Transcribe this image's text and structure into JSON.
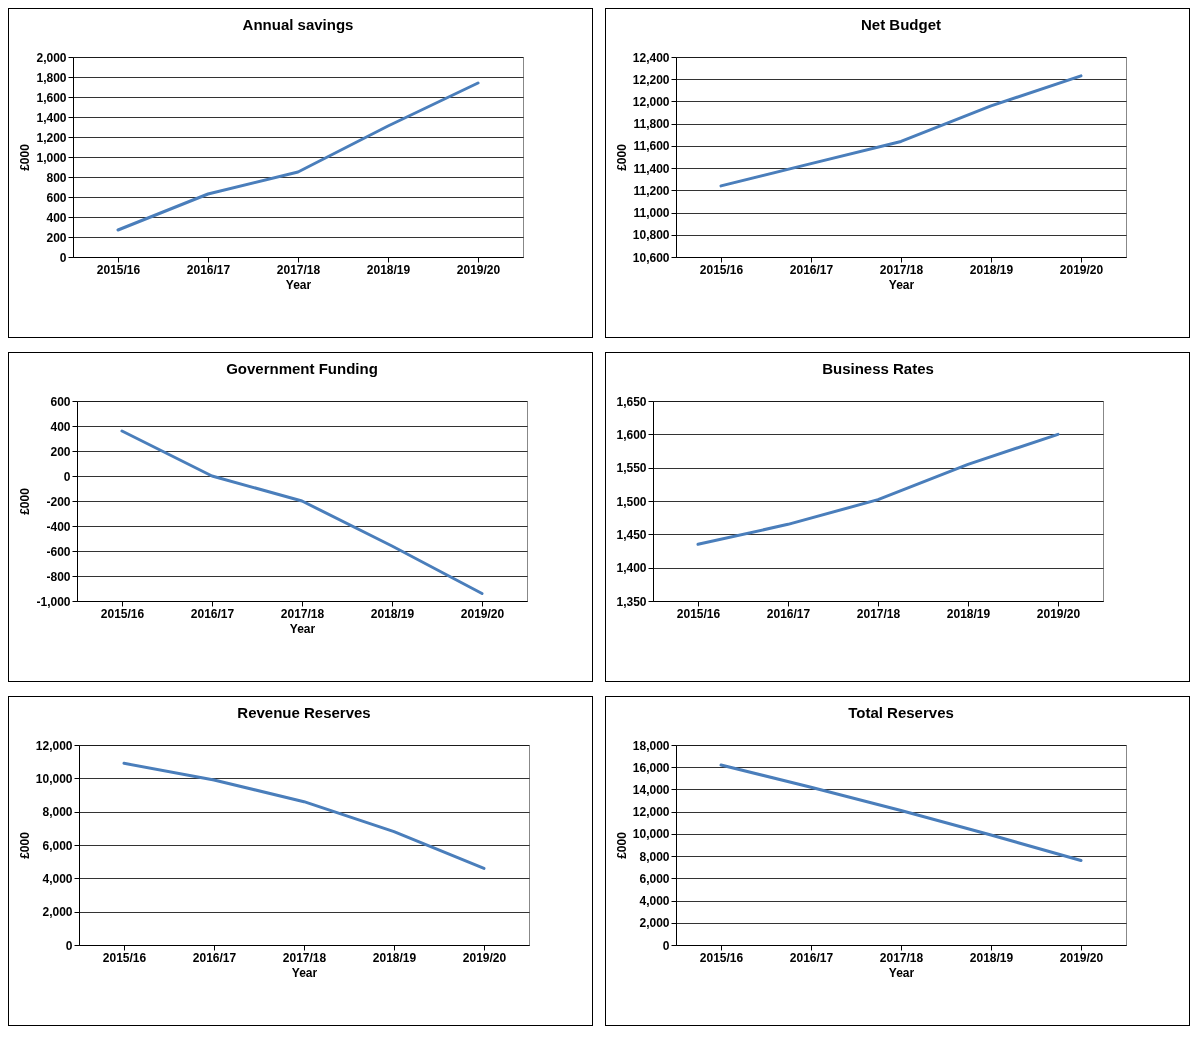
{
  "chart_data": [
    {
      "type": "line",
      "title": "Annual savings",
      "xlabel": "Year",
      "ylabel": "£000",
      "categories": [
        "2015/16",
        "2016/17",
        "2017/18",
        "2018/19",
        "2019/20"
      ],
      "series": [
        {
          "color": "#4a7ebb",
          "values": [
            270,
            630,
            850,
            1310,
            1740
          ]
        }
      ],
      "ylim": [
        0,
        2000
      ],
      "yticks": [
        0,
        200,
        400,
        600,
        800,
        {
          "value": 1000,
          "label": "1,000"
        },
        {
          "value": 1200,
          "label": "1,200"
        },
        {
          "value": 1400,
          "label": "1,400"
        },
        {
          "value": 1600,
          "label": "1,600"
        },
        {
          "value": 1800,
          "label": "1,800"
        },
        {
          "value": 2000,
          "label": "2,000"
        }
      ],
      "grid": "y"
    },
    {
      "type": "line",
      "title": "Net Budget",
      "xlabel": "Year",
      "ylabel": "£000",
      "categories": [
        "2015/16",
        "2016/17",
        "2017/18",
        "2018/19",
        "2019/20"
      ],
      "series": [
        {
          "color": "#4a7ebb",
          "values": [
            11240,
            11440,
            11640,
            11960,
            12230
          ]
        }
      ],
      "ylim": [
        10600,
        12400
      ],
      "yticks": [
        {
          "value": 10600,
          "label": "10,600"
        },
        {
          "value": 10800,
          "label": "10,800"
        },
        {
          "value": 11000,
          "label": "11,000"
        },
        {
          "value": 11200,
          "label": "11,200"
        },
        {
          "value": 11400,
          "label": "11,400"
        },
        {
          "value": 11600,
          "label": "11,600"
        },
        {
          "value": 11800,
          "label": "11,800"
        },
        {
          "value": 12000,
          "label": "12,000"
        },
        {
          "value": 12200,
          "label": "12,200"
        },
        {
          "value": 12400,
          "label": "12,400"
        }
      ],
      "grid": "y"
    },
    {
      "type": "line",
      "title": "Government Funding",
      "xlabel": "Year",
      "ylabel": "£000",
      "categories": [
        "2015/16",
        "2016/17",
        "2017/18",
        "2018/19",
        "2019/20"
      ],
      "series": [
        {
          "color": "#4a7ebb",
          "values": [
            360,
            0,
            -200,
            -560,
            -940
          ]
        }
      ],
      "ylim": [
        -1000,
        600
      ],
      "yticks": [
        {
          "value": -1000,
          "label": "-1,000"
        },
        -800,
        -600,
        -400,
        -200,
        0,
        200,
        400,
        600
      ],
      "grid": "y"
    },
    {
      "type": "line",
      "title": "Business Rates",
      "categories": [
        "2015/16",
        "2016/17",
        "2017/18",
        "2018/19",
        "2019/20"
      ],
      "series": [
        {
          "color": "#4a7ebb",
          "values": [
            1435,
            1465,
            1502,
            1555,
            1600
          ]
        }
      ],
      "ylim": [
        1350,
        1650
      ],
      "yticks": [
        {
          "value": 1350,
          "label": "1,350"
        },
        {
          "value": 1400,
          "label": "1,400"
        },
        {
          "value": 1450,
          "label": "1,450"
        },
        {
          "value": 1500,
          "label": "1,500"
        },
        {
          "value": 1550,
          "label": "1,550"
        },
        {
          "value": 1600,
          "label": "1,600"
        },
        {
          "value": 1650,
          "label": "1,650"
        }
      ],
      "grid": "y"
    },
    {
      "type": "line",
      "title": "Revenue Reserves",
      "xlabel": "Year",
      "ylabel": "£000",
      "categories": [
        "2015/16",
        "2016/17",
        "2017/18",
        "2018/19",
        "2019/20"
      ],
      "series": [
        {
          "color": "#4a7ebb",
          "values": [
            10900,
            9900,
            8600,
            6800,
            4600
          ]
        }
      ],
      "ylim": [
        0,
        12000
      ],
      "yticks": [
        0,
        {
          "value": 2000,
          "label": "2,000"
        },
        {
          "value": 4000,
          "label": "4,000"
        },
        {
          "value": 6000,
          "label": "6,000"
        },
        {
          "value": 8000,
          "label": "8,000"
        },
        {
          "value": 10000,
          "label": "10,000"
        },
        {
          "value": 12000,
          "label": "12,000"
        }
      ],
      "grid": "y"
    },
    {
      "type": "line",
      "title": "Total Reserves",
      "xlabel": "Year",
      "ylabel": "£000",
      "categories": [
        "2015/16",
        "2016/17",
        "2017/18",
        "2018/19",
        "2019/20"
      ],
      "series": [
        {
          "color": "#4a7ebb",
          "values": [
            16200,
            14200,
            12100,
            9900,
            7600
          ]
        }
      ],
      "ylim": [
        0,
        18000
      ],
      "yticks": [
        0,
        {
          "value": 2000,
          "label": "2,000"
        },
        {
          "value": 4000,
          "label": "4,000"
        },
        {
          "value": 6000,
          "label": "6,000"
        },
        {
          "value": 8000,
          "label": "8,000"
        },
        {
          "value": 10000,
          "label": "10,000"
        },
        {
          "value": 12000,
          "label": "12,000"
        },
        {
          "value": 14000,
          "label": "14,000"
        },
        {
          "value": 16000,
          "label": "16,000"
        },
        {
          "value": 18000,
          "label": "18,000"
        }
      ],
      "grid": "y"
    }
  ]
}
